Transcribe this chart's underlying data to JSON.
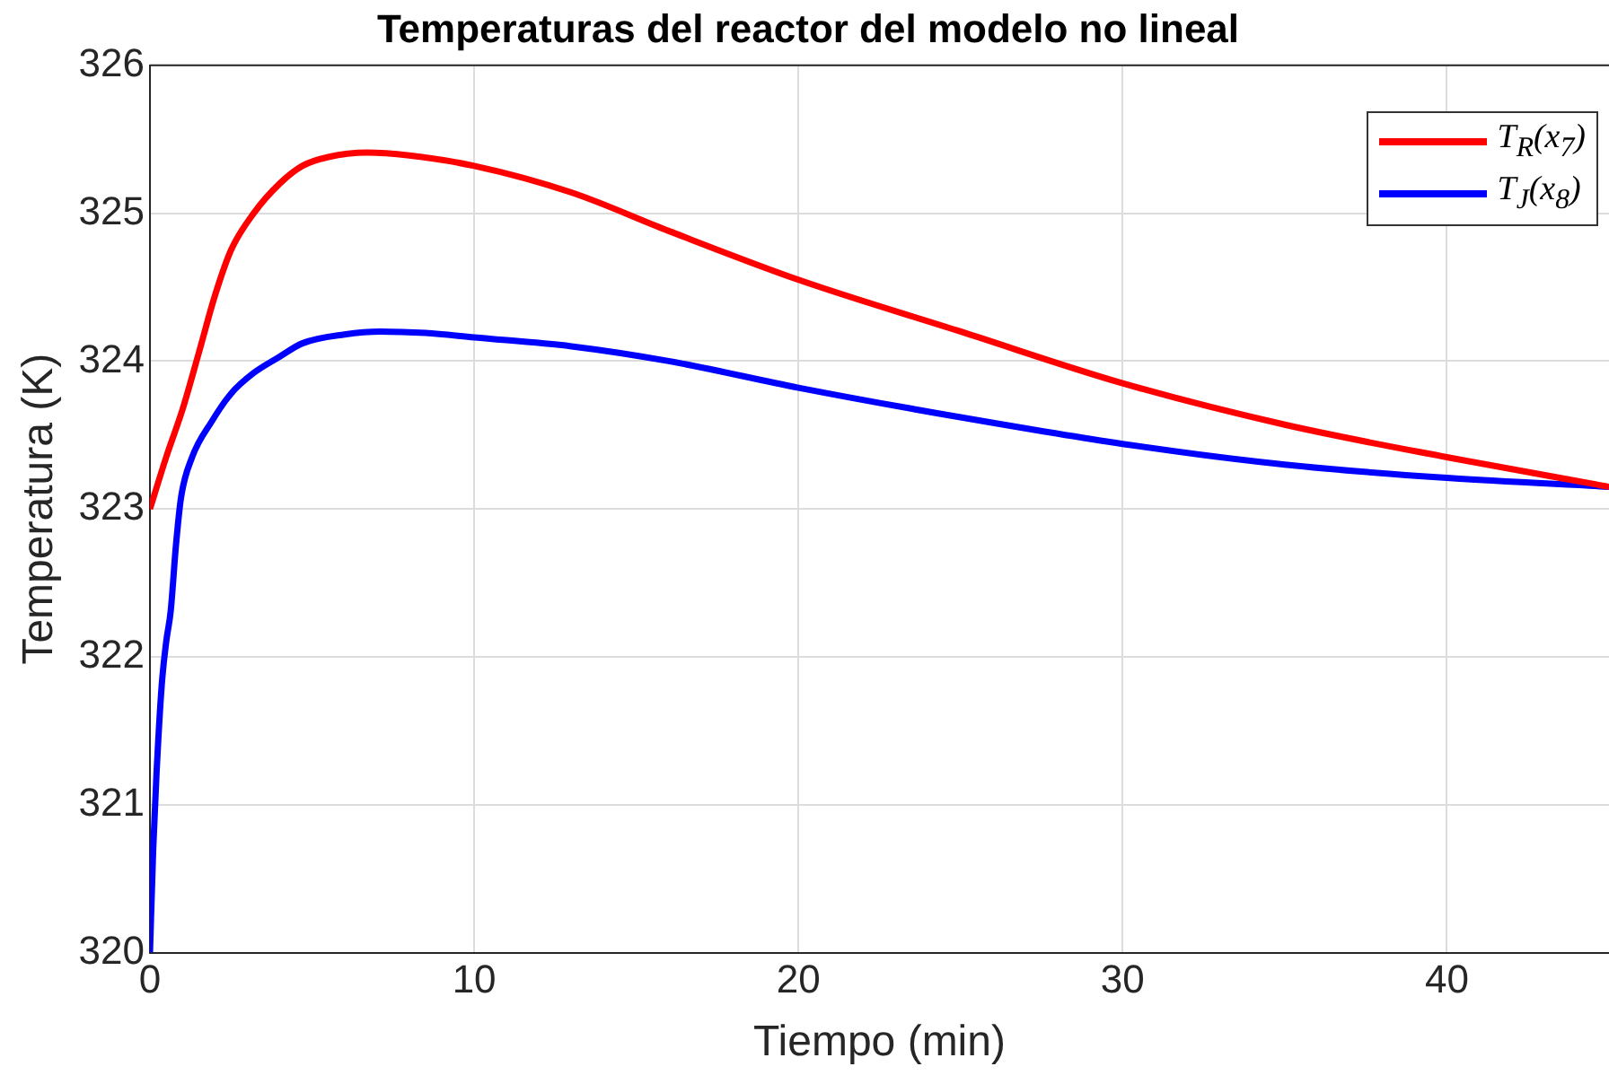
{
  "chart_data": {
    "type": "line",
    "title": "Temperaturas del reactor del modelo no lineal",
    "xlabel": "Tiempo (min)",
    "ylabel": "Temperatura (K)",
    "xlim": [
      0,
      45
    ],
    "xticks": [
      0,
      10,
      20,
      30,
      40
    ],
    "ylim": [
      320,
      326
    ],
    "yticks": [
      320,
      321,
      322,
      323,
      324,
      325,
      326
    ],
    "grid": true,
    "legend": "top right",
    "line_style": "solid",
    "marker": "none",
    "series": [
      {
        "name": "T$_{R}$(x$_{7}$)",
        "color": "#ff0000",
        "x": [
          0,
          0.5,
          1,
          1.5,
          2,
          2.5,
          3.2,
          4,
          4.7,
          5.5,
          6.7,
          8,
          10,
          13,
          16,
          20,
          25,
          30,
          35,
          40,
          45
        ],
        "values": [
          323,
          323.35,
          323.67,
          324.05,
          324.44,
          324.75,
          325.0,
          325.2,
          325.32,
          325.38,
          325.41,
          325.39,
          325.32,
          325.14,
          324.88,
          324.55,
          324.2,
          323.85,
          323.57,
          323.35,
          323.15
        ]
      },
      {
        "name": "T$_{J}$(x$_{8}$)",
        "color": "#0000ff",
        "x": [
          0,
          0.1,
          0.2,
          0.36,
          0.5,
          0.64,
          0.8,
          0.96,
          1.3,
          1.9,
          2.5,
          3.2,
          4,
          4.7,
          6,
          7.1,
          8.5,
          10,
          13,
          16,
          20,
          25,
          30,
          35,
          40,
          45
        ],
        "values": [
          320,
          320.7,
          321.2,
          321.8,
          322.1,
          322.31,
          322.75,
          323.08,
          323.35,
          323.59,
          323.78,
          323.92,
          324.03,
          324.12,
          324.18,
          324.2,
          324.19,
          324.16,
          324.1,
          324.0,
          323.82,
          323.62,
          323.44,
          323.3,
          323.21,
          323.15
        ]
      }
    ]
  }
}
